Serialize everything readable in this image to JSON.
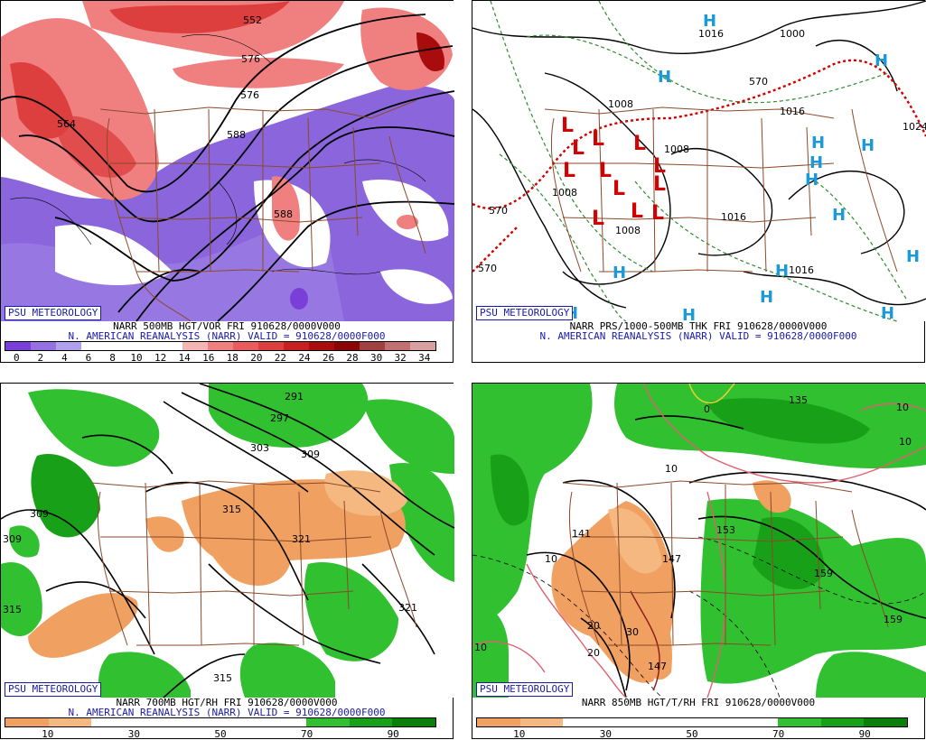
{
  "brand": "PSU METEOROLOGY",
  "colors": {
    "vor_scale": [
      "#7a3fd8",
      "#9470e0",
      "#b0a0ee",
      "#ffffff",
      "#ffffff",
      "#ffffff",
      "#ffffff",
      "#f4b4b4",
      "#f08080",
      "#e85c5c",
      "#dd3f3f",
      "#c82020",
      "#a80c0c",
      "#8c0404",
      "#a04040",
      "#c07070",
      "#d8a0a0"
    ],
    "rh_scale": [
      "#f0a060",
      "#f5b880",
      "#ffffff",
      "#ffffff",
      "#ffffff",
      "#ffffff",
      "#ffffff",
      "#30c030",
      "#18a018",
      "#0a800a"
    ]
  },
  "panels": [
    {
      "id": "vor500",
      "title": "NARR 500MB HGT/VOR FRI 910628/0000V000",
      "subtitle": "N. AMERICAN REANALYSIS (NARR) VALID = 910628/0000F000",
      "colorbar_labels": [
        "0",
        "2",
        "4",
        "6",
        "8",
        "10",
        "12",
        "14",
        "16",
        "18",
        "20",
        "22",
        "24",
        "26",
        "28",
        "30",
        "32",
        "34"
      ],
      "contour_labels": [
        "552",
        "564",
        "576",
        "588",
        "588",
        "576"
      ]
    },
    {
      "id": "prs",
      "title": "NARR PRS/1000-500MB THK FRI 910628/0000V000",
      "subtitle": "N. AMERICAN REANALYSIS (NARR) VALID = 910628/0000F000",
      "contour_labels": [
        "1016",
        "1000",
        "1008",
        "1008",
        "1008",
        "1016",
        "1016",
        "1016",
        "1024",
        "570",
        "570",
        "570",
        "1008"
      ]
    },
    {
      "id": "rh700",
      "title": "NARR 700MB HGT/RH FRI 910628/0000V000",
      "subtitle": "N. AMERICAN REANALYSIS (NARR) VALID = 910628/0000F000",
      "colorbar_labels": [
        "10",
        "30",
        "50",
        "70",
        "90"
      ],
      "contour_labels": [
        "291",
        "297",
        "303",
        "309",
        "315",
        "321",
        "309",
        "309",
        "315",
        "321",
        "315"
      ]
    },
    {
      "id": "t850",
      "title": "NARR 850MB HGT/T/RH FRI 910628/0000V000",
      "subtitle": "",
      "colorbar_labels": [
        "10",
        "30",
        "50",
        "70",
        "90"
      ],
      "contour_labels": [
        "135",
        "141",
        "147",
        "153",
        "159",
        "159",
        "147",
        "0",
        "10",
        "10",
        "10",
        "10",
        "20",
        "20",
        "30",
        "10"
      ]
    }
  ]
}
